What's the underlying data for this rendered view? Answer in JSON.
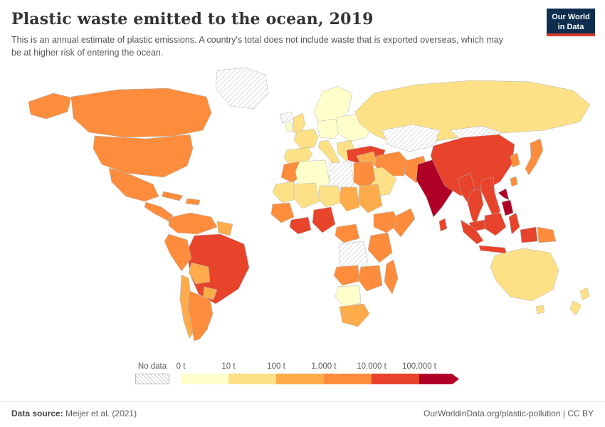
{
  "header": {
    "title": "Plastic waste emitted to the ocean, 2019",
    "subtitle": "This is an annual estimate of plastic emissions. A country's total does not include waste that is exported overseas, which may be at higher risk of entering the ocean.",
    "logo": {
      "line1": "Our World",
      "line2": "in Data",
      "bg_color": "#0d2e4e",
      "accent_color": "#d93a2b"
    }
  },
  "footer": {
    "source_label": "Data source:",
    "source_value": "Meijer et al. (2021)",
    "rights": "OurWorldinData.org/plastic-pollution | CC BY"
  },
  "chart_data": {
    "type": "choropleth",
    "title": "Plastic waste emitted to the ocean, 2019",
    "unit": "t",
    "year": "2019",
    "legend": {
      "no_data_label": "No data",
      "bins": [
        {
          "id": "b1",
          "tick": "0 t",
          "color": "#ffffcc"
        },
        {
          "id": "b2",
          "tick": "10 t",
          "color": "#fee187"
        },
        {
          "id": "b3",
          "tick": "100 t",
          "color": "#feab4b"
        },
        {
          "id": "b4",
          "tick": "1,000 t",
          "color": "#fd8d3c"
        },
        {
          "id": "b5",
          "tick": "10,000 t",
          "color": "#e8432b"
        },
        {
          "id": "b6",
          "tick": "100,000 t",
          "color": "#b10026",
          "arrow": true
        }
      ],
      "bin_ranges": {
        "b1": "0–10 t",
        "b2": "10–100 t",
        "b3": "100–1,000 t",
        "b4": "1,000–10,000 t",
        "b5": "10,000–100,000 t",
        "b6": "100,000 t+",
        "nodata": "No data"
      }
    },
    "regions": [
      {
        "id": "canada",
        "name": "Canada",
        "bin": "b4"
      },
      {
        "id": "usa",
        "name": "United States",
        "bin": "b4"
      },
      {
        "id": "greenland",
        "name": "Greenland",
        "bin": "nodata"
      },
      {
        "id": "mexico",
        "name": "Mexico",
        "bin": "b4"
      },
      {
        "id": "central-america",
        "name": "Central America",
        "bin": "b4"
      },
      {
        "id": "cuba",
        "name": "Cuba",
        "bin": "b4"
      },
      {
        "id": "hispaniola",
        "name": "Hispaniola",
        "bin": "b4"
      },
      {
        "id": "colombia-venezuela",
        "name": "Colombia & Venezuela",
        "bin": "b4"
      },
      {
        "id": "guyanas",
        "name": "Guyanas",
        "bin": "b3"
      },
      {
        "id": "brazil",
        "name": "Brazil",
        "bin": "b5"
      },
      {
        "id": "peru",
        "name": "Peru",
        "bin": "b4"
      },
      {
        "id": "bolivia",
        "name": "Bolivia",
        "bin": "b3"
      },
      {
        "id": "paraguay",
        "name": "Paraguay",
        "bin": "b3"
      },
      {
        "id": "chile",
        "name": "Chile",
        "bin": "b3"
      },
      {
        "id": "argentina",
        "name": "Argentina",
        "bin": "b4"
      },
      {
        "id": "iceland",
        "name": "Iceland",
        "bin": "nodata"
      },
      {
        "id": "uk",
        "name": "United Kingdom",
        "bin": "b2"
      },
      {
        "id": "ireland",
        "name": "Ireland",
        "bin": "b1"
      },
      {
        "id": "scandinavia",
        "name": "Scandinavia",
        "bin": "b1"
      },
      {
        "id": "france",
        "name": "France",
        "bin": "b2"
      },
      {
        "id": "iberia",
        "name": "Spain & Portugal",
        "bin": "b2"
      },
      {
        "id": "central-europe",
        "name": "Central Europe",
        "bin": "b1"
      },
      {
        "id": "italy",
        "name": "Italy",
        "bin": "b2"
      },
      {
        "id": "eastern-europe",
        "name": "Eastern Europe",
        "bin": "b1"
      },
      {
        "id": "balkans",
        "name": "Balkans & Greece",
        "bin": "b2"
      },
      {
        "id": "turkey",
        "name": "Turkey",
        "bin": "b5"
      },
      {
        "id": "russia",
        "name": "Russia",
        "bin": "b2"
      },
      {
        "id": "kazakhstan",
        "name": "Kazakhstan & Central Asia",
        "bin": "nodata"
      },
      {
        "id": "mongolia",
        "name": "Mongolia",
        "bin": "nodata"
      },
      {
        "id": "saudi-arabia",
        "name": "Saudi Arabia",
        "bin": "b2"
      },
      {
        "id": "iran",
        "name": "Iran",
        "bin": "b4"
      },
      {
        "id": "iraq-syria",
        "name": "Iraq & Syria",
        "bin": "b3"
      },
      {
        "id": "morocco",
        "name": "Morocco",
        "bin": "b4"
      },
      {
        "id": "algeria",
        "name": "Algeria",
        "bin": "b1"
      },
      {
        "id": "libya",
        "name": "Libya",
        "bin": "nodata"
      },
      {
        "id": "egypt",
        "name": "Egypt",
        "bin": "b4"
      },
      {
        "id": "mauritania",
        "name": "Mauritania",
        "bin": "b2"
      },
      {
        "id": "mali",
        "name": "Mali",
        "bin": "b2"
      },
      {
        "id": "niger",
        "name": "Niger",
        "bin": "b2"
      },
      {
        "id": "chad",
        "name": "Chad",
        "bin": "b3"
      },
      {
        "id": "sudan",
        "name": "Sudan",
        "bin": "b3"
      },
      {
        "id": "senegal-guinea",
        "name": "Senegal & Guinea",
        "bin": "b4"
      },
      {
        "id": "ghana-ivory-coast",
        "name": "Ghana & Côte d'Ivoire",
        "bin": "b5"
      },
      {
        "id": "nigeria",
        "name": "Nigeria",
        "bin": "b5"
      },
      {
        "id": "cameroon",
        "name": "Cameroon & Central Africa",
        "bin": "b4"
      },
      {
        "id": "ethiopia",
        "name": "Ethiopia",
        "bin": "b4"
      },
      {
        "id": "somalia",
        "name": "Somalia",
        "bin": "b4"
      },
      {
        "id": "kenya-tanzania",
        "name": "Kenya & Tanzania",
        "bin": "b4"
      },
      {
        "id": "drc",
        "name": "Democratic Republic of Congo",
        "bin": "nodata"
      },
      {
        "id": "angola",
        "name": "Angola",
        "bin": "b4"
      },
      {
        "id": "zambia-mozambique",
        "name": "Zambia & Mozambique",
        "bin": "b4"
      },
      {
        "id": "namibia-botswana",
        "name": "Namibia & Botswana",
        "bin": "b1"
      },
      {
        "id": "south-africa",
        "name": "South Africa",
        "bin": "b3"
      },
      {
        "id": "madagascar",
        "name": "Madagascar",
        "bin": "b4"
      },
      {
        "id": "pakistan",
        "name": "Pakistan",
        "bin": "b4"
      },
      {
        "id": "india",
        "name": "India",
        "bin": "b6"
      },
      {
        "id": "sri-lanka",
        "name": "Sri Lanka",
        "bin": "b5"
      },
      {
        "id": "bangladesh",
        "name": "Bangladesh",
        "bin": "b5"
      },
      {
        "id": "china",
        "name": "China",
        "bin": "b5"
      },
      {
        "id": "south-korea",
        "name": "South Korea",
        "bin": "b4"
      },
      {
        "id": "japan",
        "name": "Japan",
        "bin": "b4"
      },
      {
        "id": "myanmar",
        "name": "Myanmar",
        "bin": "b5"
      },
      {
        "id": "thailand",
        "name": "Thailand",
        "bin": "b5"
      },
      {
        "id": "vietnam",
        "name": "Vietnam",
        "bin": "b5"
      },
      {
        "id": "malaysia",
        "name": "Malaysia",
        "bin": "b5"
      },
      {
        "id": "indonesia",
        "name": "Indonesia",
        "bin": "b5"
      },
      {
        "id": "papua-new-guinea",
        "name": "Papua New Guinea",
        "bin": "b4"
      },
      {
        "id": "philippines",
        "name": "Philippines",
        "bin": "b6"
      },
      {
        "id": "taiwan",
        "name": "Taiwan",
        "bin": "b4"
      },
      {
        "id": "australia",
        "name": "Australia",
        "bin": "b2"
      },
      {
        "id": "new-zealand",
        "name": "New Zealand",
        "bin": "b2"
      }
    ]
  }
}
